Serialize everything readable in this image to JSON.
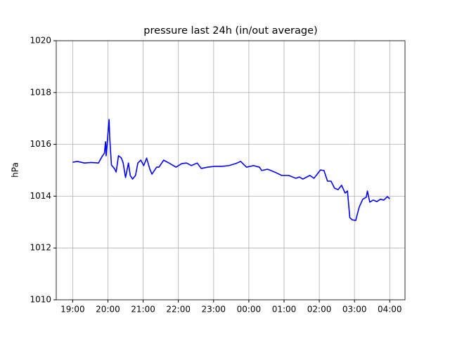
{
  "chart_data": {
    "type": "line",
    "title": "pressure last 24h (in/out average)",
    "y_label": "hPa",
    "x": [
      "19:00",
      "19:08",
      "19:20",
      "19:32",
      "19:44",
      "19:50",
      "19:54",
      "19:56",
      "19:57",
      "20:02",
      "20:03",
      "20:06",
      "20:11",
      "20:14",
      "20:18",
      "20:23",
      "20:26",
      "20:30",
      "20:35",
      "20:38",
      "20:42",
      "20:47",
      "20:51",
      "20:56",
      "21:01",
      "21:06",
      "21:11",
      "21:15",
      "21:23",
      "21:27",
      "21:35",
      "21:44",
      "21:56",
      "22:06",
      "22:14",
      "22:22",
      "22:32",
      "22:39",
      "22:50",
      "23:02",
      "23:14",
      "23:26",
      "23:38",
      "23:46",
      "23:56",
      "00:08",
      "00:18",
      "00:22",
      "00:32",
      "00:44",
      "00:56",
      "01:08",
      "01:20",
      "01:26",
      "01:32",
      "01:44",
      "01:51",
      "02:02",
      "02:08",
      "02:14",
      "02:20",
      "02:26",
      "02:32",
      "02:38",
      "02:44",
      "02:48",
      "02:52",
      "02:56",
      "03:02",
      "03:08",
      "03:14",
      "03:20",
      "03:22",
      "03:26",
      "03:32",
      "03:38",
      "03:44",
      "03:50",
      "03:56",
      "04:00"
    ],
    "series": [
      {
        "name": "pressure",
        "color": "#0000ff",
        "values": [
          1015.31,
          1015.34,
          1015.28,
          1015.3,
          1015.28,
          1015.53,
          1015.66,
          1016.1,
          1015.56,
          1016.96,
          1016.29,
          1015.2,
          1015.07,
          1014.93,
          1015.56,
          1015.47,
          1015.28,
          1014.72,
          1015.28,
          1014.8,
          1014.66,
          1014.8,
          1015.28,
          1015.39,
          1015.18,
          1015.47,
          1015.07,
          1014.85,
          1015.12,
          1015.12,
          1015.39,
          1015.28,
          1015.12,
          1015.26,
          1015.28,
          1015.18,
          1015.28,
          1015.07,
          1015.12,
          1015.15,
          1015.15,
          1015.18,
          1015.26,
          1015.34,
          1015.12,
          1015.18,
          1015.12,
          1014.99,
          1015.04,
          1014.93,
          1014.8,
          1014.8,
          1014.69,
          1014.74,
          1014.66,
          1014.8,
          1014.69,
          1015.01,
          1014.99,
          1014.58,
          1014.58,
          1014.31,
          1014.25,
          1014.42,
          1014.12,
          1014.2,
          1013.17,
          1013.09,
          1013.06,
          1013.58,
          1013.88,
          1013.96,
          1014.2,
          1013.77,
          1013.85,
          1013.79,
          1013.88,
          1013.85,
          1013.98,
          1013.9
        ]
      }
    ],
    "xlim": [
      "18:32",
      "04:26"
    ],
    "xticks": [
      "19:00",
      "20:00",
      "21:00",
      "22:00",
      "23:00",
      "00:00",
      "01:00",
      "02:00",
      "03:00",
      "04:00"
    ],
    "ylim": [
      1010,
      1020
    ],
    "yticks": [
      1010,
      1012,
      1014,
      1016,
      1018,
      1020
    ],
    "grid": true
  }
}
